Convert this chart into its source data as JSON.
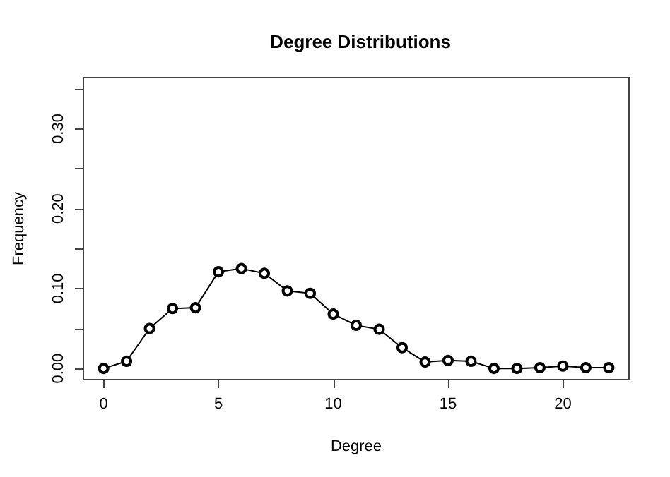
{
  "chart_data": {
    "type": "line",
    "title": "Degree Distributions",
    "xlabel": "Degree",
    "ylabel": "Frequency",
    "x": [
      0,
      1,
      2,
      3,
      4,
      5,
      6,
      7,
      8,
      9,
      10,
      11,
      12,
      13,
      14,
      15,
      16,
      17,
      18,
      19,
      20,
      21,
      22
    ],
    "series": [
      {
        "color": "#000000",
        "values": [
          0,
          0.009,
          0.05,
          0.075,
          0.076,
          0.121,
          0.125,
          0.119,
          0.097,
          0.094,
          0.068,
          0.054,
          0.049,
          0.026,
          0.008,
          0.01,
          0.009,
          0,
          0,
          0.001,
          0.003,
          0.001,
          0.001
        ]
      }
    ],
    "xlim": [
      -0.88,
      22.88
    ],
    "xticks": [
      0,
      5,
      10,
      15,
      20
    ],
    "ylim": [
      -0.014,
      0.364
    ],
    "yticks": [
      {
        "value": 0,
        "label": "0.00"
      },
      {
        "value": 0.05,
        "label": null
      },
      {
        "value": 0.1,
        "label": "0.10"
      },
      {
        "value": 0.15,
        "label": null
      },
      {
        "value": 0.2,
        "label": "0.20"
      },
      {
        "value": 0.25,
        "label": null
      },
      {
        "value": 0.3,
        "label": "0.30"
      },
      {
        "value": 0.35,
        "label": null
      }
    ],
    "grid": false,
    "marker": "circle",
    "line_style": "solid"
  }
}
